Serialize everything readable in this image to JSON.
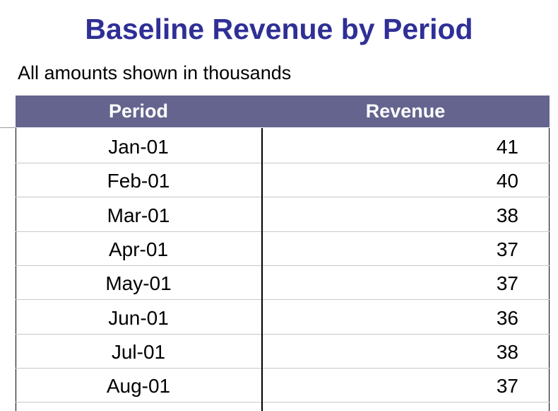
{
  "title": "Baseline Revenue by Period",
  "subtitle": "All amounts shown in thousands",
  "table": {
    "columns": [
      "Period",
      "Revenue"
    ],
    "rows": [
      [
        "Jan-01",
        41
      ],
      [
        "Feb-01",
        40
      ],
      [
        "Mar-01",
        38
      ],
      [
        "Apr-01",
        37
      ],
      [
        "May-01",
        37
      ],
      [
        "Jun-01",
        36
      ],
      [
        "Jul-01",
        38
      ],
      [
        "Aug-01",
        37
      ]
    ]
  }
}
